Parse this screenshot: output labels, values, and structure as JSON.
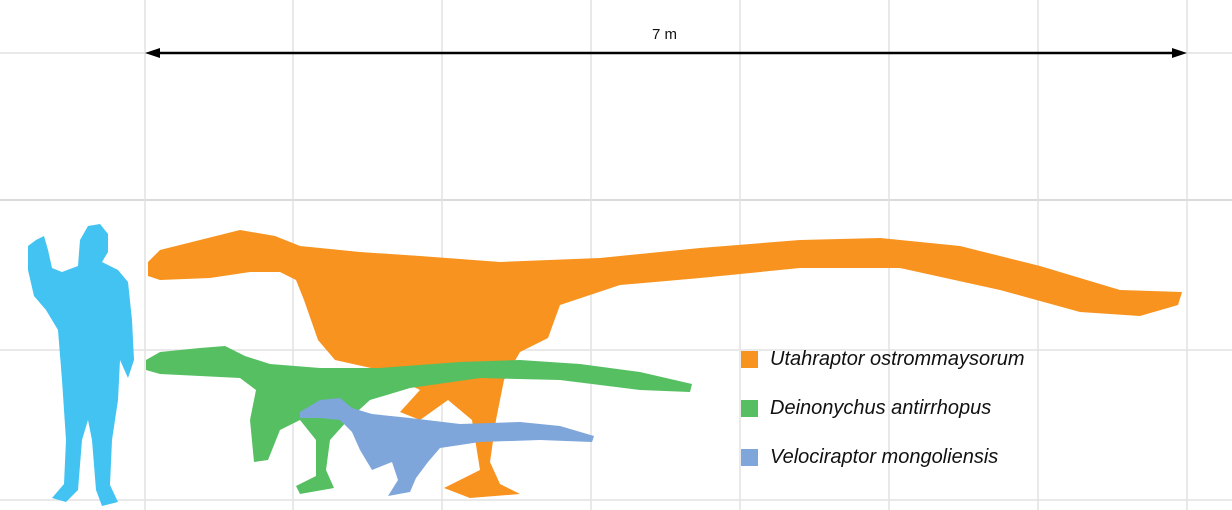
{
  "scale": {
    "label": "7 m",
    "length_m": 7
  },
  "colors": {
    "human": "#42c3f2",
    "utahraptor": "#f7931e",
    "deinonychus": "#55bf62",
    "velociraptor": "#7ea6db",
    "grid": "#dcdcdc"
  },
  "legend": [
    {
      "label": "Utahraptor ostrommaysorum",
      "color": "#f7931e"
    },
    {
      "label": "Deinonychus antirrhopus",
      "color": "#55bf62"
    },
    {
      "label": "Velociraptor mongoliensis",
      "color": "#7ea6db"
    }
  ]
}
